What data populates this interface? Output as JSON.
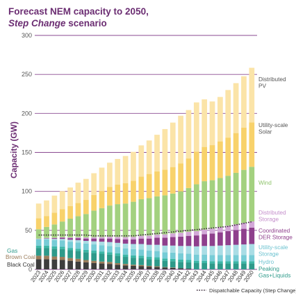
{
  "title": {
    "line1": "Forecast NEM capacity to 2050,",
    "line2_em": "Step Change",
    "line2_rest": " scenario"
  },
  "chart_data": {
    "type": "bar",
    "stacked": true,
    "ylabel": "Capacity (GW)",
    "ylim": [
      0,
      300
    ],
    "yticks": [
      0,
      50,
      100,
      150,
      200,
      250,
      300
    ],
    "grid": "horizontal",
    "categories": [
      "2023",
      "2024",
      "2025",
      "2026",
      "2027",
      "2028",
      "2029",
      "2030",
      "2031",
      "2032",
      "2033",
      "2034",
      "2035",
      "2036",
      "2037",
      "2038",
      "2039",
      "2040",
      "2041",
      "2042",
      "2043",
      "2044",
      "2045",
      "2046",
      "2047",
      "2048",
      "2049",
      "2050"
    ],
    "series": [
      {
        "name": "Black Coal",
        "color": "#3d3d3d",
        "values": [
          13,
          13,
          12.5,
          12,
          11,
          10,
          9,
          8,
          7.5,
          7,
          6,
          5,
          4.5,
          4,
          3.5,
          3,
          2.5,
          2,
          1.5,
          1,
          0,
          0,
          0,
          0,
          0,
          0,
          0,
          0
        ]
      },
      {
        "name": "Brown Coal",
        "color": "#9b7d5b",
        "values": [
          4.5,
          4.5,
          4,
          4,
          3.5,
          3.5,
          3,
          3,
          2.5,
          2.5,
          2,
          2,
          1.5,
          1.5,
          1,
          1,
          0.5,
          0.5,
          0,
          0,
          0,
          0,
          0,
          0,
          0,
          0,
          0,
          0
        ]
      },
      {
        "name": "Gas",
        "color": "#2e9a8a",
        "values": [
          10,
          10,
          10,
          10,
          10,
          10,
          10,
          10,
          10,
          9.5,
          9.5,
          9,
          9,
          9,
          8.5,
          8.5,
          8,
          8,
          8,
          8,
          8,
          8,
          7.5,
          7.5,
          7.5,
          7.5,
          7.5,
          7.5
        ]
      },
      {
        "name": "Peaking Gas+Liquids",
        "color": "#3db7a7",
        "values": [
          3,
          3,
          3,
          3,
          3,
          3,
          3,
          3,
          3,
          3,
          3,
          3,
          3,
          3,
          3,
          3,
          3,
          3,
          3,
          3,
          3,
          3,
          3,
          3,
          3,
          3,
          3,
          3
        ]
      },
      {
        "name": "Hydro",
        "color": "#77ccd6",
        "values": [
          8,
          8,
          8,
          8,
          8,
          8,
          8,
          8,
          8,
          8,
          8,
          8,
          8,
          8,
          8,
          8,
          8,
          8,
          8,
          8,
          8,
          8,
          8,
          8,
          8,
          8,
          8,
          8
        ]
      },
      {
        "name": "Utility-scale Storage",
        "color": "#a9dde5",
        "values": [
          0.5,
          1,
          1.5,
          2,
          2.5,
          3,
          3.5,
          4,
          4.5,
          5,
          5.5,
          6,
          6.5,
          7,
          7.5,
          8,
          8.5,
          9,
          9.5,
          10,
          10.5,
          11,
          11.5,
          12,
          12.5,
          13,
          13.5,
          14
        ]
      },
      {
        "name": "Coordinated DER Storage",
        "color": "#8e3f8c",
        "values": [
          0.2,
          0.5,
          1,
          1.5,
          2,
          2.5,
          3,
          3.5,
          4,
          4.5,
          5,
          5.5,
          6,
          7,
          8,
          9,
          10,
          11,
          12,
          13,
          14,
          15,
          16,
          17,
          18,
          19,
          20,
          21
        ]
      },
      {
        "name": "Distributed Storage",
        "color": "#d3a8d8",
        "values": [
          0.2,
          0.4,
          0.6,
          0.8,
          1,
          1.2,
          1.5,
          1.8,
          2,
          2.3,
          2.6,
          2.9,
          3.2,
          3.5,
          3.8,
          4.1,
          4.4,
          4.7,
          5,
          5.3,
          5.6,
          6,
          6.3,
          6.6,
          7,
          7.3,
          7.6,
          8
        ]
      },
      {
        "name": "Wind",
        "color": "#a3d17f",
        "values": [
          12,
          14,
          17,
          20,
          24,
          27,
          30,
          34,
          37,
          40,
          42,
          43,
          45,
          47,
          48,
          49,
          50,
          51,
          53,
          56,
          60,
          62,
          62,
          63,
          64,
          66,
          68,
          70
        ]
      },
      {
        "name": "Utility-scale Solar",
        "color": "#f8d26b",
        "values": [
          14,
          14,
          15,
          16,
          16,
          17,
          18,
          20,
          22,
          24,
          25,
          26,
          27,
          29,
          31,
          32,
          33,
          34,
          36,
          38,
          42,
          44,
          45,
          47,
          49,
          51,
          54,
          57
        ]
      },
      {
        "name": "Distributed PV",
        "color": "#fbe4a8",
        "values": [
          19,
          20,
          22,
          23,
          24,
          26,
          27,
          28,
          30,
          31,
          33,
          35,
          37,
          40,
          43,
          47,
          52,
          57,
          61,
          62,
          63,
          61,
          56,
          57,
          61,
          64,
          66,
          70
        ]
      }
    ],
    "dispatchable_line": {
      "name": "Dispatchable Capacity (Step Change)",
      "color": "#3a2a3a",
      "values": [
        44,
        44,
        44,
        44,
        44,
        44,
        44,
        43,
        43,
        43,
        43,
        43,
        43,
        44,
        45,
        46,
        47,
        48,
        49,
        50,
        51,
        52,
        53,
        54,
        55,
        57,
        59,
        61
      ]
    },
    "legend_placement": "right",
    "footnote": "Dispatchable Capacity (Step Change)"
  }
}
